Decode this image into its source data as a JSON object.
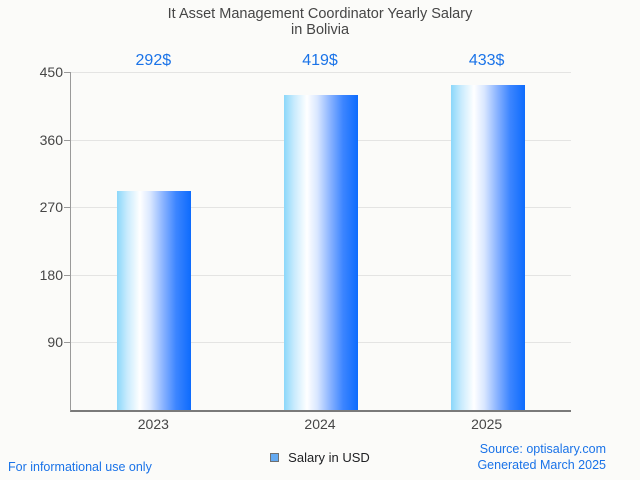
{
  "title": {
    "line1": "It Asset Management Coordinator Yearly Salary",
    "line2": "in Bolivia"
  },
  "chart_data": {
    "type": "bar",
    "title": "It Asset Management Coordinator Yearly Salary in Bolivia",
    "categories": [
      "2023",
      "2024",
      "2025"
    ],
    "values": [
      292,
      419,
      433
    ],
    "value_labels": [
      "292$",
      "419$",
      "433$"
    ],
    "series": [
      {
        "name": "Salary in USD",
        "values": [
          292,
          419,
          433
        ]
      }
    ],
    "xlabel": "",
    "ylabel": "",
    "y_ticks": [
      90,
      180,
      270,
      360,
      450
    ],
    "ylim": [
      0,
      450
    ],
    "grid": true,
    "legend_position": "bottom",
    "bar_gradient": [
      "#8bd7fa",
      "#ffffff",
      "#0d6bfd"
    ],
    "value_label_color": "#1a73e8",
    "axis_text_color": "#464646"
  },
  "legend": {
    "label": "Salary in USD",
    "marker_icon": "blue-square-icon",
    "marker_color": "#63a9f1",
    "marker_border_color": "#6f6f6f"
  },
  "footer": {
    "left": "For informational use only",
    "source": "Source: optisalary.com",
    "generated": "Generated March 2025",
    "link_color": "#1a73e8"
  }
}
